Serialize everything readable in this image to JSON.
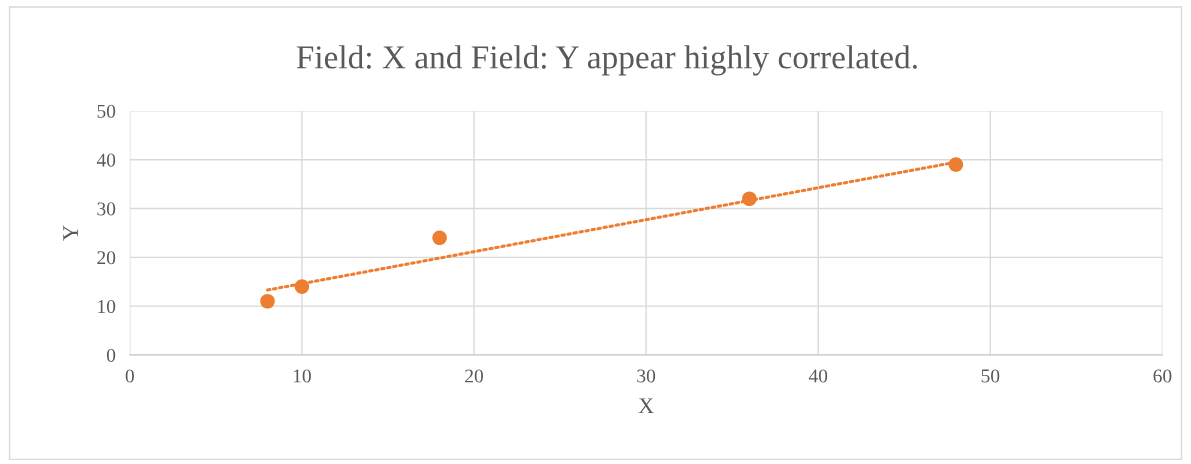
{
  "chart_data": {
    "type": "scatter",
    "title": "Field: X and Field: Y appear highly correlated.",
    "xlabel": "X",
    "ylabel": "Y",
    "x": [
      8,
      10,
      18,
      36,
      48
    ],
    "series": [
      {
        "color": "#ed7d31",
        "values": [
          11,
          14,
          24,
          32,
          39
        ],
        "marker": "circle"
      },
      {
        "type": "line",
        "color": "#ed7d31",
        "x": [
          8,
          48
        ],
        "values": [
          13.3,
          39.5
        ],
        "line_style": "dotted",
        "marker": "none"
      }
    ],
    "xlim": [
      0,
      60
    ],
    "xticks": [
      0,
      10,
      20,
      30,
      40,
      50,
      60
    ],
    "ylim": [
      0,
      50
    ],
    "yticks": [
      0,
      10,
      20,
      30,
      40,
      50
    ],
    "grid": true,
    "legend": false
  }
}
